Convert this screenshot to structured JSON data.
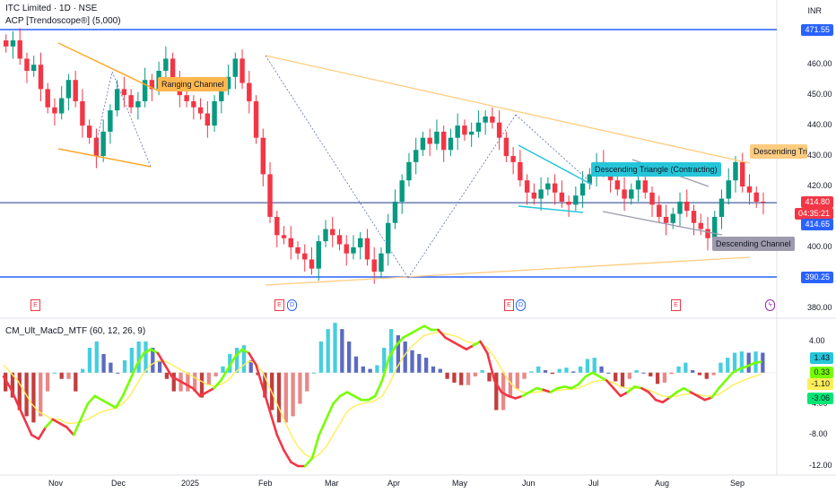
{
  "header": {
    "title": "ITC Limited · 1D · NSE",
    "indicator": "ACP [Trendoscope®] (5,000)",
    "currency": "INR",
    "macd_title": "CM_Ult_MacD_MTF (60, 12, 26, 9)"
  },
  "price_axis": {
    "ticks": [
      "460.00",
      "450.00",
      "440.00",
      "430.00",
      "420.00",
      "410.00",
      "400.00",
      "380.00"
    ],
    "tags": [
      {
        "text": "471.55",
        "color": "#2962ff"
      },
      {
        "text": "414.80",
        "color": "#f23645"
      },
      {
        "text": "04:35:21",
        "color": "#f23645"
      },
      {
        "text": "414.65",
        "color": "#2962ff"
      },
      {
        "text": "390.25",
        "color": "#2962ff"
      }
    ]
  },
  "macd_axis": {
    "ticks": [
      "4.00",
      "-4.00",
      "-8.00",
      "-12.00"
    ],
    "tags": [
      {
        "text": "1.43",
        "color": "#26c6da"
      },
      {
        "text": "0.33",
        "color": "#76ff03"
      },
      {
        "text": "-1.10",
        "color": "#ffee58"
      },
      {
        "text": "-3.06",
        "color": "#00e676"
      }
    ]
  },
  "time_axis": [
    "Nov",
    "Dec",
    "2025",
    "Feb",
    "Mar",
    "Apr",
    "May",
    "Jun",
    "Jul",
    "Aug",
    "Sep"
  ],
  "pattern_labels": [
    {
      "text": "Ranging Channel",
      "bg": "#ffb74d",
      "fg": "#131722"
    },
    {
      "text": "Descending Triangle (Contracting)",
      "bg": "#26c6da",
      "fg": "#131722"
    },
    {
      "text": "Descending Triangle",
      "bg": "#ffcc80",
      "fg": "#131722"
    },
    {
      "text": "Descending Channel",
      "bg": "#9e9aad",
      "fg": "#131722"
    }
  ],
  "events": [
    "E",
    "E",
    "D",
    "E",
    "D",
    "E",
    "ϟ"
  ],
  "chart_data": [
    {
      "type": "candlestick",
      "title": "ITC Limited · 1D · NSE",
      "y_axis": "INR",
      "ylim": [
        380,
        473
      ],
      "x_labels": [
        "Nov",
        "Dec",
        "2025",
        "Feb",
        "Mar",
        "Apr",
        "May",
        "Jun",
        "Jul",
        "Aug",
        "Sep"
      ],
      "last_price": 414.8,
      "horizontal_levels": [
        471.55,
        414.65,
        390.25
      ],
      "close_path": [
        466,
        468,
        462,
        458,
        460,
        452,
        446,
        444,
        449,
        455,
        448,
        440,
        436,
        430,
        438,
        445,
        452,
        450,
        446,
        448,
        455,
        452,
        458,
        462,
        455,
        450,
        448,
        446,
        444,
        440,
        448,
        452,
        456,
        462,
        454,
        448,
        436,
        424,
        410,
        404,
        403,
        400,
        398,
        396,
        393,
        402,
        406,
        404,
        401,
        398,
        400,
        403,
        396,
        392,
        398,
        408,
        415,
        422,
        428,
        432,
        436,
        434,
        438,
        432,
        436,
        440,
        437,
        438,
        441,
        443,
        441,
        436,
        430,
        428,
        422,
        418,
        416,
        419,
        421,
        418,
        415,
        414,
        417,
        421,
        424,
        428,
        425,
        422,
        419,
        416,
        419,
        422,
        418,
        414,
        410,
        408,
        411,
        415,
        412,
        408,
        406,
        403,
        410,
        416,
        422,
        428,
        420,
        418,
        415,
        414.8
      ],
      "patterns": [
        {
          "name": "Ranging Channel",
          "color": "#ffa726"
        },
        {
          "name": "Descending Triangle (Contracting)",
          "color": "#26c6da"
        },
        {
          "name": "Descending Triangle",
          "color": "#ffcc80"
        },
        {
          "name": "Descending Channel",
          "color": "#9e9aad"
        }
      ]
    },
    {
      "type": "line",
      "title": "CM_Ult_MacD_MTF (60, 12, 26, 9)",
      "ylim": [
        -12,
        6
      ],
      "series": [
        {
          "name": "MACD",
          "values": [
            -0.5,
            -2,
            -4,
            -6,
            -8,
            -8.5,
            -7,
            -6,
            -6.5,
            -7,
            -8,
            -6,
            -4,
            -3,
            -3.5,
            -4,
            -4.5,
            -3,
            -1,
            1,
            2.5,
            3,
            2.5,
            1,
            -0.5,
            -1,
            -1.5,
            -2,
            -3,
            -2.5,
            -2,
            -1,
            0.5,
            2,
            3,
            2.5,
            1,
            -2,
            -5,
            -8,
            -10,
            -11.5,
            -12,
            -12,
            -11,
            -8,
            -6,
            -4,
            -3,
            -2.5,
            -3,
            -3.5,
            -3.5,
            -3,
            -1,
            2,
            3.5,
            4.5,
            5,
            5.5,
            6,
            5.5,
            5.5,
            4.5,
            4,
            3.5,
            3,
            3.5,
            4,
            2.5,
            -1,
            -2.5,
            -3,
            -3.3,
            -3,
            -2.5,
            -2,
            -2.2,
            -2.5,
            -2,
            -1.8,
            -2,
            -1.5,
            -0.5,
            0,
            -0.5,
            -1,
            -2,
            -3,
            -2.5,
            -1.8,
            -2,
            -2.5,
            -3.5,
            -3.8,
            -3.2,
            -2.5,
            -2,
            -2.5,
            -3,
            -3.5,
            -3.2,
            -2,
            -1,
            0,
            0.5,
            0.8,
            1.2,
            1.4
          ]
        },
        {
          "name": "Signal",
          "values": [
            1,
            0,
            -1,
            -2.5,
            -4,
            -5,
            -5.5,
            -6,
            -6,
            -6.5,
            -6.5,
            -6.3,
            -6,
            -5.5,
            -5,
            -4.8,
            -4.5,
            -4,
            -3,
            -1.5,
            0,
            1,
            1.5,
            1.5,
            1,
            0.5,
            0,
            -0.5,
            -1,
            -1.5,
            -1.7,
            -1.5,
            -1,
            0,
            0.8,
            1.5,
            1.2,
            0,
            -2,
            -4,
            -6,
            -8,
            -9.5,
            -10.5,
            -11,
            -10.5,
            -9.5,
            -8,
            -6.5,
            -5,
            -4.3,
            -4,
            -3.8,
            -3.6,
            -3,
            -1.5,
            0.5,
            2,
            3.2,
            4,
            4.8,
            5,
            5.2,
            5,
            4.8,
            4.5,
            4,
            3.8,
            3.8,
            3.2,
            2,
            0.5,
            -1,
            -2,
            -2.5,
            -2.6,
            -2.5,
            -2.4,
            -2.4,
            -2.3,
            -2.2,
            -2.1,
            -2,
            -1.6,
            -1.2,
            -1,
            -1,
            -1.3,
            -1.8,
            -2,
            -2,
            -2,
            -2.2,
            -2.6,
            -3,
            -3.1,
            -3,
            -2.8,
            -2.7,
            -2.8,
            -3,
            -3,
            -2.8,
            -2.2,
            -1.6,
            -1.2,
            -0.8,
            -0.5,
            -0.2
          ]
        },
        {
          "name": "Histogram",
          "type": "bar"
        }
      ],
      "last_values": [
        1.43,
        0.33,
        -1.1,
        -3.06
      ]
    }
  ]
}
